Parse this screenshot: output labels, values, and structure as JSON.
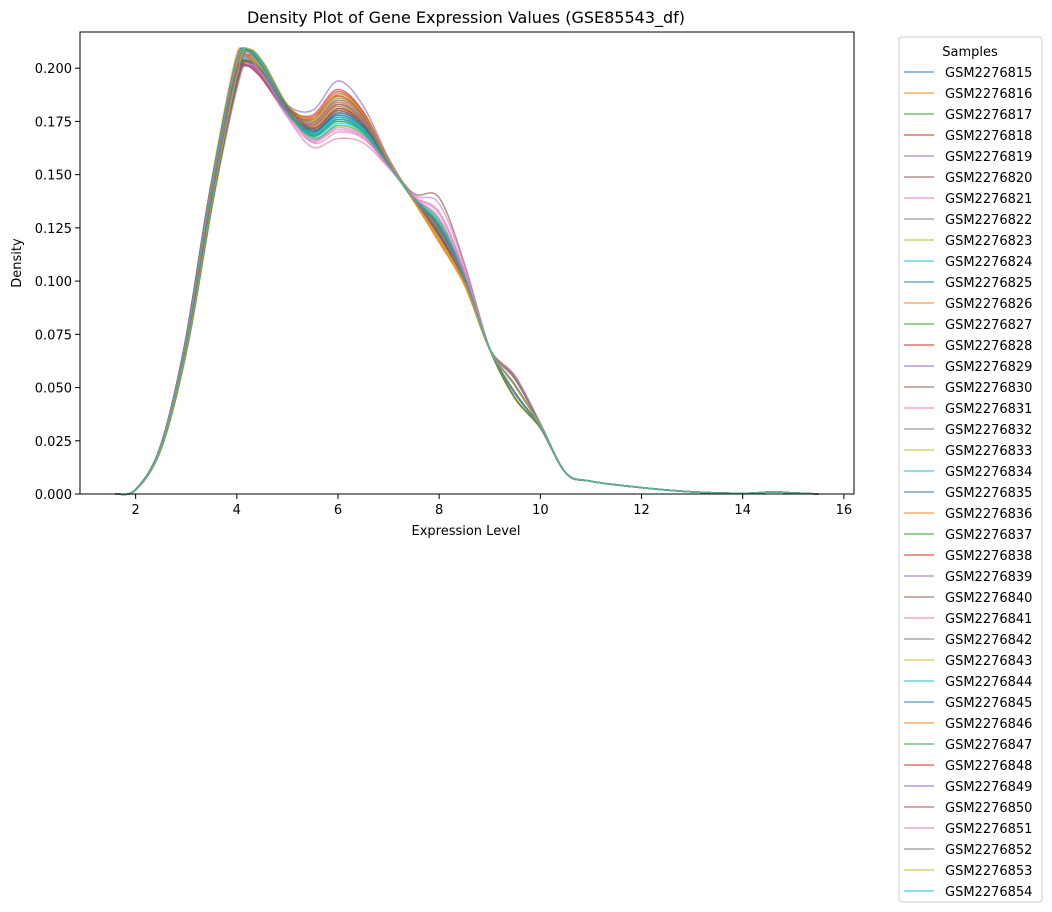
{
  "chart_data": {
    "type": "line",
    "title": "Density Plot of Gene Expression Values (GSE85543_df)",
    "xlabel": "Expression Level",
    "ylabel": "Density",
    "xlim": [
      0.9,
      16.2
    ],
    "ylim": [
      0,
      0.217
    ],
    "xticks": [
      2,
      4,
      6,
      8,
      10,
      12,
      14,
      16
    ],
    "yticks": [
      0.0,
      0.025,
      0.05,
      0.075,
      0.1,
      0.125,
      0.15,
      0.175,
      0.2
    ],
    "ytick_labels": [
      "0.000",
      "0.025",
      "0.050",
      "0.075",
      "0.100",
      "0.125",
      "0.150",
      "0.175",
      "0.200"
    ],
    "grid": false,
    "legend": {
      "title": "Samples",
      "placement": "outside-right"
    },
    "x": [
      1.6,
      2.0,
      2.5,
      3.0,
      3.5,
      4.0,
      4.2,
      4.5,
      5.0,
      5.5,
      6.0,
      6.5,
      7.0,
      7.5,
      8.0,
      8.5,
      9.0,
      9.5,
      10.0,
      10.5,
      11.0,
      12.0,
      13.0,
      14.0,
      14.6,
      15.0,
      15.5
    ],
    "base_density": [
      0.0,
      0.002,
      0.022,
      0.07,
      0.14,
      0.198,
      0.205,
      0.199,
      0.18,
      0.17,
      0.178,
      0.172,
      0.155,
      0.138,
      0.122,
      0.1,
      0.068,
      0.05,
      0.032,
      0.01,
      0.006,
      0.003,
      0.001,
      0.0003,
      0.001,
      0.0005,
      0.0
    ],
    "series_colors": [
      "#1f77b4",
      "#ff7f0e",
      "#2ca02c",
      "#d62728",
      "#9467bd",
      "#8c564b",
      "#e377c2",
      "#7f7f7f",
      "#bcbd22",
      "#17becf"
    ],
    "series": [
      {
        "name": "GSM2276815",
        "peak2": 0.177,
        "shoulder": 0.12
      },
      {
        "name": "GSM2276816",
        "peak2": 0.181,
        "shoulder": 0.118
      },
      {
        "name": "GSM2276817",
        "peak2": 0.173,
        "shoulder": 0.129
      },
      {
        "name": "GSM2276818",
        "peak2": 0.19,
        "shoulder": 0.122
      },
      {
        "name": "GSM2276819",
        "peak2": 0.194,
        "shoulder": 0.121
      },
      {
        "name": "GSM2276820",
        "peak2": 0.18,
        "shoulder": 0.14
      },
      {
        "name": "GSM2276821",
        "peak2": 0.167,
        "shoulder": 0.137
      },
      {
        "name": "GSM2276822",
        "peak2": 0.186,
        "shoulder": 0.125
      },
      {
        "name": "GSM2276823",
        "peak2": 0.185,
        "shoulder": 0.123
      },
      {
        "name": "GSM2276824",
        "peak2": 0.175,
        "shoulder": 0.127
      },
      {
        "name": "GSM2276825",
        "peak2": 0.176,
        "shoulder": 0.122
      },
      {
        "name": "GSM2276826",
        "peak2": 0.183,
        "shoulder": 0.119
      },
      {
        "name": "GSM2276827",
        "peak2": 0.178,
        "shoulder": 0.124
      },
      {
        "name": "GSM2276828",
        "peak2": 0.188,
        "shoulder": 0.121
      },
      {
        "name": "GSM2276829",
        "peak2": 0.184,
        "shoulder": 0.123
      },
      {
        "name": "GSM2276830",
        "peak2": 0.179,
        "shoulder": 0.126
      },
      {
        "name": "GSM2276831",
        "peak2": 0.17,
        "shoulder": 0.133
      },
      {
        "name": "GSM2276832",
        "peak2": 0.182,
        "shoulder": 0.124
      },
      {
        "name": "GSM2276833",
        "peak2": 0.187,
        "shoulder": 0.12
      },
      {
        "name": "GSM2276834",
        "peak2": 0.174,
        "shoulder": 0.128
      },
      {
        "name": "GSM2276835",
        "peak2": 0.178,
        "shoulder": 0.122
      },
      {
        "name": "GSM2276836",
        "peak2": 0.184,
        "shoulder": 0.118
      },
      {
        "name": "GSM2276837",
        "peak2": 0.176,
        "shoulder": 0.125
      },
      {
        "name": "GSM2276838",
        "peak2": 0.189,
        "shoulder": 0.121
      },
      {
        "name": "GSM2276839",
        "peak2": 0.183,
        "shoulder": 0.122
      },
      {
        "name": "GSM2276840",
        "peak2": 0.18,
        "shoulder": 0.127
      },
      {
        "name": "GSM2276841",
        "peak2": 0.172,
        "shoulder": 0.13
      },
      {
        "name": "GSM2276842",
        "peak2": 0.181,
        "shoulder": 0.124
      },
      {
        "name": "GSM2276843",
        "peak2": 0.186,
        "shoulder": 0.121
      },
      {
        "name": "GSM2276844",
        "peak2": 0.177,
        "shoulder": 0.126
      },
      {
        "name": "GSM2276845",
        "peak2": 0.179,
        "shoulder": 0.121
      },
      {
        "name": "GSM2276846",
        "peak2": 0.182,
        "shoulder": 0.119
      },
      {
        "name": "GSM2276847",
        "peak2": 0.175,
        "shoulder": 0.124
      },
      {
        "name": "GSM2276848",
        "peak2": 0.187,
        "shoulder": 0.122
      },
      {
        "name": "GSM2276849",
        "peak2": 0.185,
        "shoulder": 0.123
      },
      {
        "name": "GSM2276850",
        "peak2": 0.181,
        "shoulder": 0.126
      },
      {
        "name": "GSM2276851",
        "peak2": 0.171,
        "shoulder": 0.132
      },
      {
        "name": "GSM2276852",
        "peak2": 0.183,
        "shoulder": 0.124
      },
      {
        "name": "GSM2276853",
        "peak2": 0.188,
        "shoulder": 0.12
      },
      {
        "name": "GSM2276854",
        "peak2": 0.176,
        "shoulder": 0.127
      }
    ]
  }
}
